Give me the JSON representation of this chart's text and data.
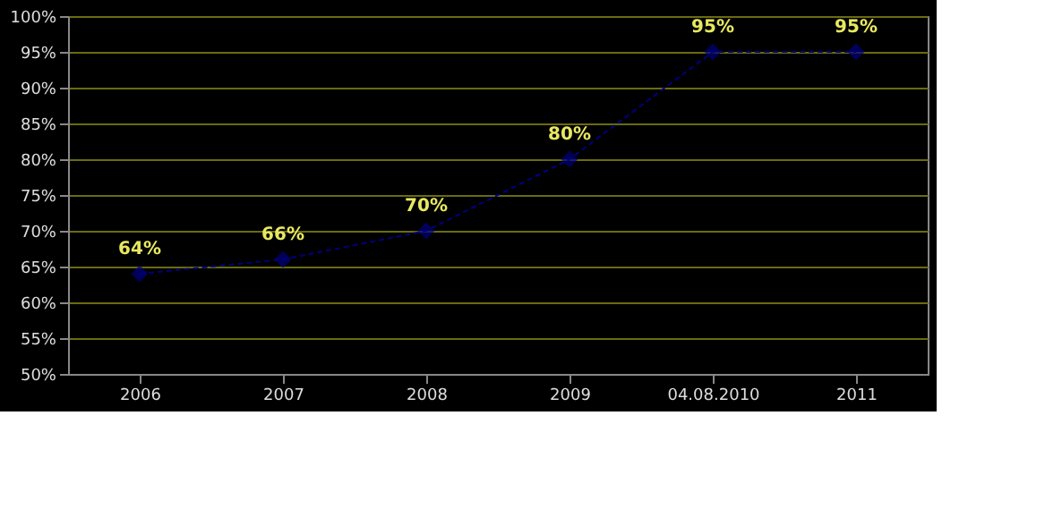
{
  "chart_data": {
    "type": "line",
    "categories": [
      "2006",
      "2007",
      "2008",
      "2009",
      "04.08.2010",
      "2011"
    ],
    "series": [
      {
        "color": "#000080",
        "values": [
          64,
          66,
          70,
          80,
          95,
          95
        ]
      }
    ],
    "value_labels": [
      "64%",
      "66%",
      "70%",
      "80%",
      "95%",
      "95%"
    ],
    "ylim": [
      50,
      100
    ],
    "yticks": [
      {
        "value": 50,
        "label": "50%"
      },
      {
        "value": 55,
        "label": "55%"
      },
      {
        "value": 60,
        "label": "60%"
      },
      {
        "value": 65,
        "label": "65%"
      },
      {
        "value": 70,
        "label": "70%"
      },
      {
        "value": 75,
        "label": "75%"
      },
      {
        "value": 80,
        "label": "80%"
      },
      {
        "value": 85,
        "label": "85%"
      },
      {
        "value": 90,
        "label": "90%"
      },
      {
        "value": 95,
        "label": "95%"
      },
      {
        "value": 100,
        "label": "100%"
      }
    ],
    "grid": "y",
    "marker": "diamond",
    "line_style": "dashed"
  }
}
